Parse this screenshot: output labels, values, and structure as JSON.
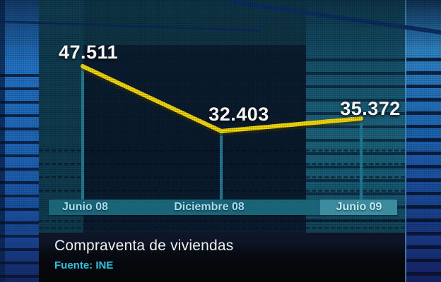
{
  "chart_data": {
    "type": "line",
    "title": "Compraventa de viviendas",
    "source": "Fuente: INE",
    "categories": [
      "Junio 08",
      "Diciembre 08",
      "Junio 09"
    ],
    "values": [
      47511,
      32403,
      35372
    ],
    "value_labels": [
      "47.511",
      "32.403",
      "35.372"
    ],
    "highlighted_category": "Junio 09",
    "legend": "none",
    "grid": "off"
  },
  "colors": {
    "line": "#f4d90a",
    "line_shadow": "#3a3200",
    "drop_line": "#1e7e97",
    "axis_bar": "#1a6477",
    "axis_bar_highlight": "#3a8c9e",
    "axis_text": "#a8dcec",
    "value_text": "#f5f5f5",
    "title_text": "#efefef",
    "source_text": "#28c4e4"
  }
}
